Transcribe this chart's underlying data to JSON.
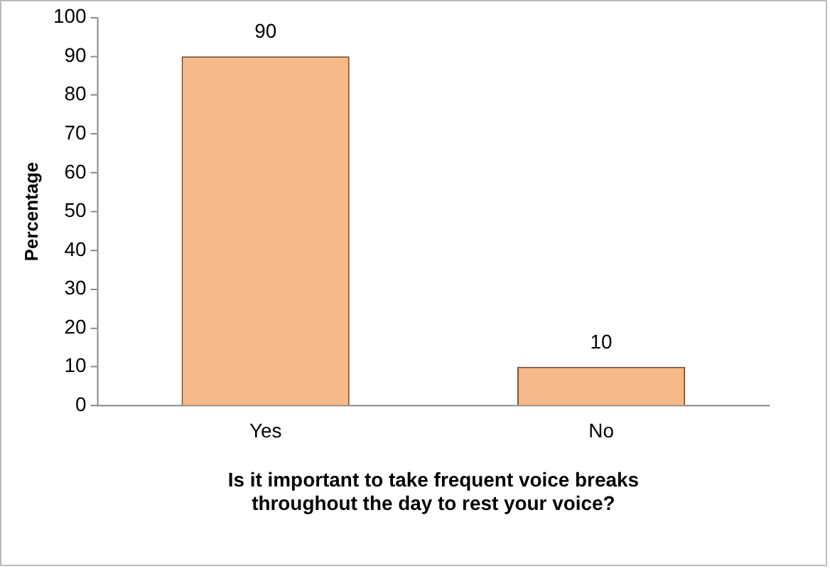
{
  "chart_data": {
    "type": "bar",
    "xlabel": "Is it important to take frequent voice breaks throughout the day to rest your voice?",
    "ylabel": "Percentage",
    "categories": [
      "Yes",
      "No"
    ],
    "values": [
      90,
      10
    ],
    "color": "#f6b98a",
    "ylim": [
      0,
      100
    ],
    "yticks": [
      0,
      10,
      20,
      30,
      40,
      50,
      60,
      70,
      80,
      90,
      100
    ],
    "grid": false,
    "legend": false,
    "data_labels": true
  }
}
